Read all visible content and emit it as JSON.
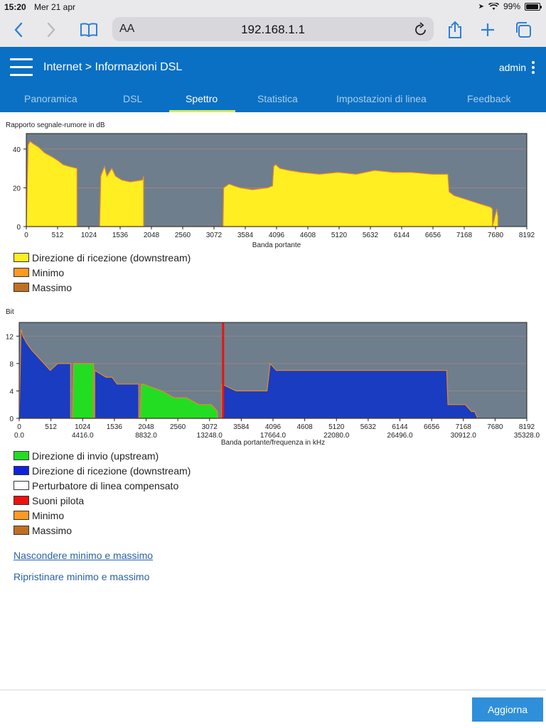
{
  "status_bar": {
    "time": "15:20",
    "date": "Mer 21 apr",
    "battery": "99%"
  },
  "browser": {
    "text_size_label": "AA",
    "url": "192.168.1.1"
  },
  "header": {
    "breadcrumb": "Internet > Informazioni DSL",
    "user": "admin",
    "tabs": [
      {
        "label": "Panoramica"
      },
      {
        "label": "DSL"
      },
      {
        "label": "Spettro"
      },
      {
        "label": "Statistica"
      },
      {
        "label": "Impostazioni di linea"
      },
      {
        "label": "Feedback"
      }
    ],
    "active_tab": "Spettro"
  },
  "snr_chart": {
    "title": "Rapporto segnale-rumore in dB",
    "xlabel": "Banda portante",
    "legend": [
      {
        "label": "Direzione di ricezione (downstream)",
        "color": "#ffee22"
      },
      {
        "label": "Minimo",
        "color": "#ff9922"
      },
      {
        "label": "Massimo",
        "color": "#c07020"
      }
    ]
  },
  "bit_chart": {
    "title": "Bit",
    "xlabel": "Banda portante/frequenza in kHz",
    "legend": [
      {
        "label": "Direzione di invio (upstream)",
        "color": "#22dd22"
      },
      {
        "label": "Direzione di ricezione (downstream)",
        "color": "#1122dd"
      },
      {
        "label": "Perturbatore di linea compensato",
        "color": "#ffffff"
      },
      {
        "label": "Suoni pilota",
        "color": "#ee1111"
      },
      {
        "label": "Minimo",
        "color": "#ff9922"
      },
      {
        "label": "Massimo",
        "color": "#c07020"
      }
    ]
  },
  "links": {
    "hide_minmax": "Nascondere minimo e massimo",
    "reset_minmax": "Ripristinare minimo e massimo"
  },
  "footer": {
    "refresh_label": "Aggiorna"
  },
  "chart_data": [
    {
      "type": "area",
      "title": "Rapporto segnale-rumore in dB",
      "xlabel": "Banda portante",
      "ylabel": "",
      "xlim": [
        0,
        8192
      ],
      "ylim": [
        0,
        48
      ],
      "xticks": [
        0,
        512,
        1024,
        1536,
        2048,
        2560,
        3072,
        3584,
        4096,
        4608,
        5120,
        5632,
        6144,
        6656,
        7168,
        7680,
        8192
      ],
      "yticks": [
        0,
        20,
        40
      ],
      "grid": true,
      "series": [
        {
          "name": "Direzione di ricezione (downstream)",
          "color": "#ffee22",
          "x": [
            0,
            30,
            60,
            100,
            200,
            300,
            420,
            520,
            600,
            700,
            830,
            830,
            1200,
            1220,
            1280,
            1320,
            1360,
            1400,
            1460,
            1560,
            1700,
            1900,
            1920,
            1920,
            3220,
            3230,
            3320,
            3400,
            3500,
            3700,
            3950,
            4030,
            4050,
            4080,
            4150,
            4300,
            4500,
            4800,
            5100,
            5400,
            5700,
            6000,
            6300,
            6650,
            6900,
            6920,
            7000,
            7200,
            7400,
            7600,
            7630,
            7630,
            7700,
            7720,
            7720
          ],
          "values": [
            0,
            42,
            44,
            43,
            41,
            38,
            36,
            34,
            32,
            31,
            30,
            0,
            0,
            26,
            31,
            26,
            28,
            30,
            26,
            24,
            23,
            24,
            26,
            0,
            0,
            20,
            22,
            21,
            20,
            19,
            20,
            21,
            31,
            32,
            30,
            29,
            28,
            27,
            28,
            27,
            29,
            28,
            28,
            27,
            27,
            18,
            16,
            14,
            12,
            10,
            9,
            0,
            9,
            5,
            0
          ]
        }
      ]
    },
    {
      "type": "area",
      "title": "Bit",
      "xlabel": "Banda portante/frequenza in kHz",
      "ylabel": "",
      "xlim": [
        0,
        8192
      ],
      "ylim": [
        0,
        14
      ],
      "xticks": [
        0,
        512,
        1024,
        1536,
        2048,
        2560,
        3072,
        3584,
        4096,
        4608,
        5120,
        5632,
        6144,
        6656,
        7168,
        7680,
        8192
      ],
      "xticks_khz": [
        "0.0",
        "4416.0",
        "8832.0",
        "13248.0",
        "17664.0",
        "22080.0",
        "26496.0",
        "30912.0",
        "35328.0"
      ],
      "yticks": [
        0,
        4,
        8,
        12
      ],
      "grid": true,
      "pilot_tone": 3290,
      "series": [
        {
          "name": "Direzione di ricezione (downstream)",
          "color": "#1a3cc0",
          "x": [
            0,
            30,
            60,
            120,
            200,
            300,
            400,
            500,
            620,
            720,
            830,
            830,
            1220,
            1220,
            1400,
            1500,
            1580,
            1700,
            1900,
            1930,
            1930,
            3270,
            3270,
            3500,
            3800,
            4000,
            4050,
            4150,
            4500,
            5000,
            5500,
            6000,
            6300,
            6500,
            6900,
            6920,
            7000,
            7200,
            7300,
            7350,
            7400
          ],
          "values": [
            0,
            13,
            12,
            11,
            10,
            9,
            8,
            7,
            8,
            8,
            8,
            0,
            0,
            7,
            6,
            6,
            5,
            5,
            5,
            5,
            0,
            0,
            5,
            4,
            4,
            4,
            8,
            7,
            7,
            7,
            7,
            7,
            7,
            7,
            7,
            2,
            2,
            2,
            1,
            1,
            0
          ]
        },
        {
          "name": "Direzione di invio (upstream)",
          "color": "#22dd22",
          "x": [
            860,
            880,
            900,
            1100,
            1200,
            1200,
            1950,
            1970,
            2000,
            2300,
            2500,
            2700,
            2900,
            3100,
            3200,
            3200
          ],
          "values": [
            0,
            8,
            8,
            8,
            8,
            0,
            0,
            5,
            5,
            4,
            3,
            3,
            2,
            2,
            1,
            0
          ]
        }
      ]
    }
  ]
}
